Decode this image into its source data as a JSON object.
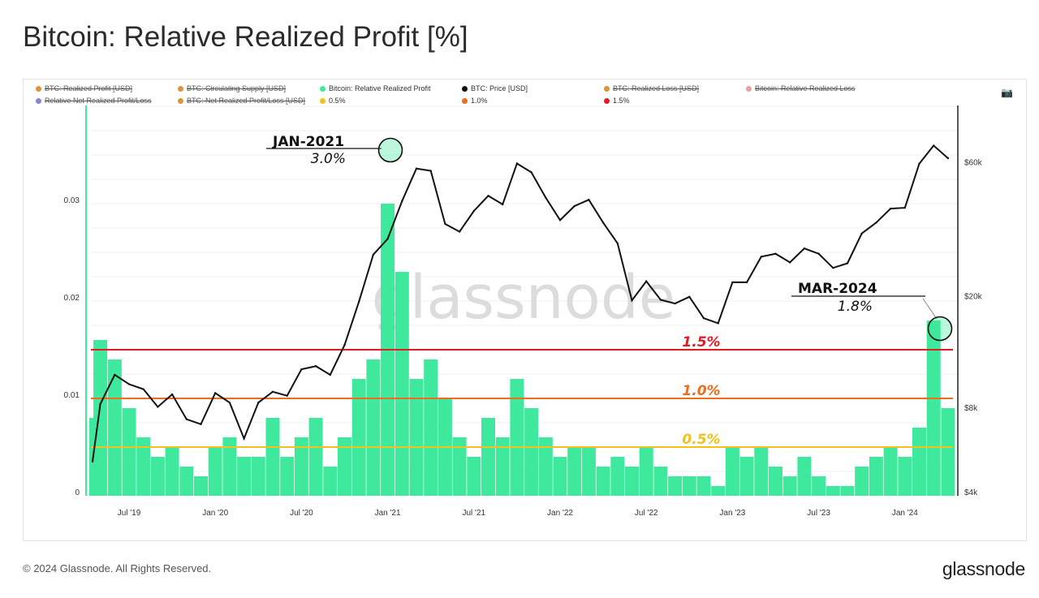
{
  "title": "Bitcoin: Relative Realized Profit [%]",
  "legend": [
    {
      "label": "BTC: Realized Profit [USD]",
      "color": "#e0923a",
      "active": false
    },
    {
      "label": "BTC: Circulating Supply [USD]",
      "color": "#e0923a",
      "active": false
    },
    {
      "label": "Bitcoin: Relative Realized Profit",
      "color": "#3ee89c",
      "active": true
    },
    {
      "label": "BTC: Price [USD]",
      "color": "#111111",
      "active": true
    },
    {
      "label": "BTC: Realized Loss [USD]",
      "color": "#e0923a",
      "active": false
    },
    {
      "label": "Bitcoin: Relative Realized Loss",
      "color": "#e8a0a0",
      "active": false
    },
    {
      "label": "Relative Net Realized Profit/Loss",
      "color": "#8a84d8",
      "active": false
    },
    {
      "label": "BTC: Net Realized Profit/Loss [USD]",
      "color": "#e0923a",
      "active": false
    },
    {
      "label": "0.5%",
      "color": "#f2c21b",
      "active": true
    },
    {
      "label": "1.0%",
      "color": "#ef6c1a",
      "active": true
    },
    {
      "label": "1.5%",
      "color": "#e01b24",
      "active": true
    }
  ],
  "camera_icon": "camera-icon",
  "watermark": "glassnode",
  "footer": "© 2024 Glassnode. All Rights Reserved.",
  "logo": "glassnode",
  "chart_data": {
    "type": "bar+line",
    "months": [
      "2019-04",
      "2019-05",
      "2019-06",
      "2019-07",
      "2019-08",
      "2019-09",
      "2019-10",
      "2019-11",
      "2019-12",
      "2020-01",
      "2020-02",
      "2020-03",
      "2020-04",
      "2020-05",
      "2020-06",
      "2020-07",
      "2020-08",
      "2020-09",
      "2020-10",
      "2020-11",
      "2020-12",
      "2021-01",
      "2021-02",
      "2021-03",
      "2021-04",
      "2021-05",
      "2021-06",
      "2021-07",
      "2021-08",
      "2021-09",
      "2021-10",
      "2021-11",
      "2021-12",
      "2022-01",
      "2022-02",
      "2022-03",
      "2022-04",
      "2022-05",
      "2022-06",
      "2022-07",
      "2022-08",
      "2022-09",
      "2022-10",
      "2022-11",
      "2022-12",
      "2023-01",
      "2023-02",
      "2023-03",
      "2023-04",
      "2023-05",
      "2023-06",
      "2023-07",
      "2023-08",
      "2023-09",
      "2023-10",
      "2023-11",
      "2023-12",
      "2024-01",
      "2024-02",
      "2024-03",
      "2024-04"
    ],
    "series": [
      {
        "name": "Bitcoin: Relative Realized Profit",
        "axis": "left",
        "color": "#3ee89c",
        "values": [
          0.008,
          0.016,
          0.014,
          0.009,
          0.006,
          0.004,
          0.005,
          0.003,
          0.002,
          0.005,
          0.006,
          0.004,
          0.004,
          0.008,
          0.004,
          0.006,
          0.008,
          0.003,
          0.006,
          0.012,
          0.014,
          0.03,
          0.023,
          0.012,
          0.014,
          0.01,
          0.006,
          0.004,
          0.008,
          0.006,
          0.012,
          0.009,
          0.006,
          0.004,
          0.005,
          0.005,
          0.003,
          0.004,
          0.003,
          0.005,
          0.003,
          0.002,
          0.002,
          0.002,
          0.001,
          0.005,
          0.004,
          0.005,
          0.003,
          0.002,
          0.004,
          0.002,
          0.001,
          0.001,
          0.003,
          0.004,
          0.005,
          0.004,
          0.007,
          0.018,
          0.009
        ]
      },
      {
        "name": "BTC: Price [USD]",
        "axis": "right",
        "color": "#111111",
        "values": [
          5300,
          8500,
          10800,
          10000,
          9600,
          8300,
          9200,
          7500,
          7200,
          9300,
          8600,
          6400,
          8600,
          9400,
          9100,
          11300,
          11600,
          10800,
          13800,
          19700,
          29000,
          33000,
          45000,
          58800,
          57700,
          37300,
          35000,
          41500,
          47000,
          43800,
          61300,
          57000,
          46300,
          38500,
          43200,
          45500,
          37700,
          31800,
          19900,
          23300,
          20000,
          19400,
          20500,
          17200,
          16500,
          23100,
          23100,
          28500,
          29200,
          27200,
          30500,
          29200,
          26000,
          27000,
          34500,
          37700,
          42300,
          42600,
          61200,
          71000,
          64000
        ]
      }
    ],
    "thresholds": [
      {
        "label": "0.5%",
        "value": 0.005,
        "color": "#f2c21b"
      },
      {
        "label": "1.0%",
        "value": 0.01,
        "color": "#ef6c1a"
      },
      {
        "label": "1.5%",
        "value": 0.015,
        "color": "#e01b24"
      }
    ],
    "left_axis": {
      "ticks": [
        {
          "v": 0,
          "label": "0"
        },
        {
          "v": 0.01,
          "label": "0.01"
        },
        {
          "v": 0.02,
          "label": "0.02"
        },
        {
          "v": 0.03,
          "label": "0.03"
        }
      ],
      "range": [
        0,
        0.04
      ]
    },
    "right_axis": {
      "scale": "log",
      "ticks": [
        {
          "v": 4000,
          "label": "$4k"
        },
        {
          "v": 8000,
          "label": "$8k"
        },
        {
          "v": 20000,
          "label": "$20k"
        },
        {
          "v": 60000,
          "label": "$60k"
        }
      ]
    },
    "x_ticks": [
      {
        "m": 3,
        "label": "Jul '19"
      },
      {
        "m": 9,
        "label": "Jan '20"
      },
      {
        "m": 15,
        "label": "Jul '20"
      },
      {
        "m": 21,
        "label": "Jan '21"
      },
      {
        "m": 27,
        "label": "Jul '21"
      },
      {
        "m": 33,
        "label": "Jan '22"
      },
      {
        "m": 39,
        "label": "Jul '22"
      },
      {
        "m": 45,
        "label": "Jan '23"
      },
      {
        "m": 51,
        "label": "Jul '23"
      },
      {
        "m": 57,
        "label": "Jan '24"
      }
    ],
    "annotations": [
      {
        "title": "JAN-2021",
        "value": "3.0%",
        "month": 21
      },
      {
        "title": "MAR-2024",
        "value": "1.8%",
        "month": 59
      }
    ],
    "grid": true
  }
}
